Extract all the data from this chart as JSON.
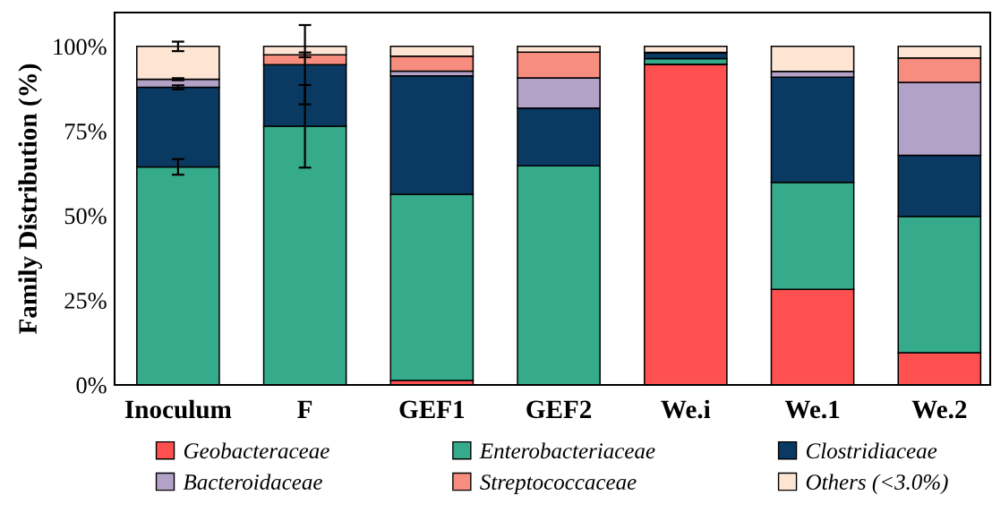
{
  "chart_data": {
    "type": "bar",
    "stacked": true,
    "ylabel": "Family Distribution (%)",
    "categories": [
      "Inoculum",
      "F",
      "GEF1",
      "GEF2",
      "We.i",
      "We.1",
      "We.2"
    ],
    "series": [
      {
        "name": "Geobacteraceae",
        "color": "#ff5050",
        "values": [
          null,
          0,
          1.3,
          0,
          94.7,
          28.2,
          9.5
        ],
        "errors": [
          null,
          null,
          null,
          null,
          null,
          null,
          null
        ]
      },
      {
        "name": "Enterobacteriaceae",
        "color": "#35ab8b",
        "values": [
          64.4,
          76.4,
          55.0,
          64.7,
          1.7,
          31.6,
          40.3
        ],
        "errors": [
          2.3,
          12.2,
          null,
          null,
          null,
          null,
          null
        ]
      },
      {
        "name": "Clostridiaceae",
        "color": "#0a3a62",
        "values": [
          23.5,
          18.2,
          35.0,
          17.1,
          1.8,
          31.1,
          18.0
        ],
        "errors": [
          0.6,
          11.7,
          null,
          null,
          null,
          null,
          null
        ]
      },
      {
        "name": "Bacteroidaceae",
        "color": "#b3a2c8",
        "values": [
          2.4,
          0,
          1.4,
          8.9,
          0,
          1.7,
          21.6
        ],
        "errors": [
          0.3,
          null,
          null,
          null,
          null,
          null,
          null
        ]
      },
      {
        "name": "Streptococcaceae",
        "color": "#f78d7e",
        "values": [
          0,
          2.9,
          4.4,
          7.6,
          0,
          null,
          7.2
        ],
        "errors": [
          null,
          0.7,
          null,
          null,
          null,
          null,
          null
        ]
      },
      {
        "name": "Others (<3.0%)",
        "color": "#fee4d2",
        "values": [
          9.7,
          2.5,
          2.9,
          1.7,
          1.8,
          7.4,
          3.4
        ],
        "errors": [
          1.4,
          null,
          null,
          null,
          null,
          null,
          null
        ]
      }
    ],
    "ylim": [
      0,
      110
    ],
    "yticks": [
      {
        "value": 0,
        "label": "0%"
      },
      {
        "value": 25,
        "label": "25%"
      },
      {
        "value": 50,
        "label": "50%"
      },
      {
        "value": 75,
        "label": "75%"
      },
      {
        "value": 100,
        "label": "100%"
      }
    ],
    "grid": false,
    "legend": "bottom"
  }
}
